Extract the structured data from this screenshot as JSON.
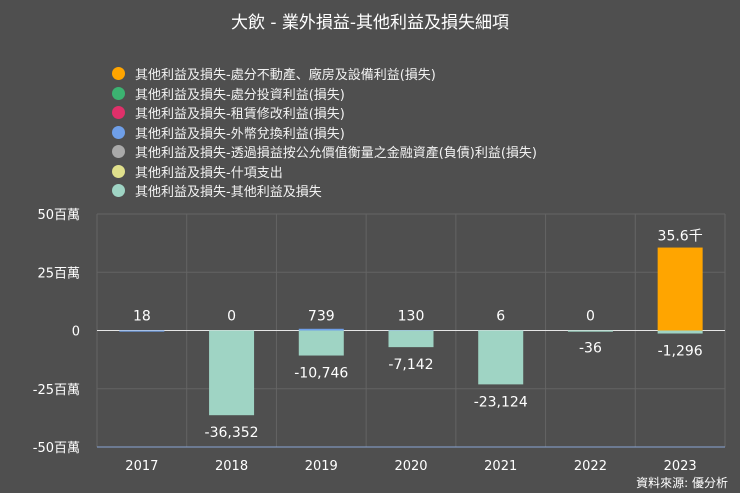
{
  "source_note": "資料來源: 優分析",
  "chart_data": {
    "type": "bar",
    "title": "大飲 - 業外損益-其他利益及損失細項",
    "categories": [
      "2017",
      "2018",
      "2019",
      "2020",
      "2021",
      "2022",
      "2023"
    ],
    "y_ticks": [
      {
        "value": 50000,
        "label": "50百萬"
      },
      {
        "value": 25000,
        "label": "25百萬"
      },
      {
        "value": 0,
        "label": "0"
      },
      {
        "value": -25000,
        "label": "-25百萬"
      },
      {
        "value": -50000,
        "label": "-50百萬"
      }
    ],
    "ylim": [
      -50000,
      50000
    ],
    "grid": true,
    "legend_position": "top-left",
    "series": [
      {
        "name": "其他利益及損失-處分不動產、廠房及設備利益(損失)",
        "color": "#ffa500",
        "values": [
          0,
          0,
          0,
          0,
          0,
          0,
          35600
        ]
      },
      {
        "name": "其他利益及損失-處分投資利益(損失)",
        "color": "#3cb371",
        "values": [
          0,
          0,
          0,
          0,
          0,
          0,
          0
        ]
      },
      {
        "name": "其他利益及損失-租賃修改利益(損失)",
        "color": "#e0306a",
        "values": [
          0,
          0,
          0,
          0,
          0,
          0,
          0
        ]
      },
      {
        "name": "其他利益及損失-外幣兌換利益(損失)",
        "color": "#6f9fe8",
        "values": [
          18,
          0,
          739,
          130,
          6,
          0,
          0
        ]
      },
      {
        "name": "其他利益及損失-透過損益按公允價值衡量之金融資產(負債)利益(損失)",
        "color": "#a9a9a9",
        "values": [
          0,
          0,
          0,
          0,
          0,
          0,
          0
        ]
      },
      {
        "name": "其他利益及損失-什項支出",
        "color": "#e0e08c",
        "values": [
          0,
          0,
          0,
          0,
          0,
          0,
          0
        ]
      },
      {
        "name": "其他利益及損失-其他利益及損失",
        "color": "#9fd4c4",
        "values": [
          0,
          -36352,
          -10746,
          -7142,
          -23124,
          -36,
          -1296
        ]
      }
    ],
    "top_labels": [
      "18",
      "0",
      "739",
      "130",
      "6",
      "0",
      "35.6千"
    ],
    "bottom_labels": [
      "",
      "-36,352",
      "-10,746",
      "-7,142",
      "-23,124",
      "-36",
      "-1,296"
    ]
  }
}
